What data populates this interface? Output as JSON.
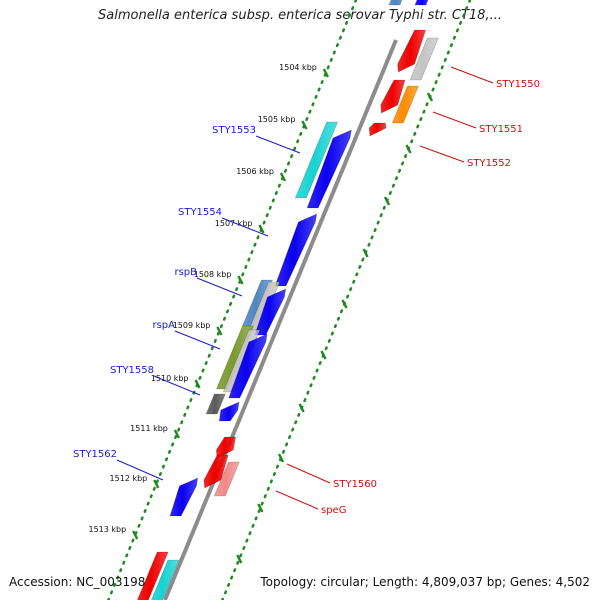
{
  "title": "Salmonella enterica subsp. enterica serovar Typhi str. CT18,...",
  "footer": {
    "accession": "Accession: NC_003198",
    "summary": "Topology: circular; Length: 4,809,037 bp; Genes: 4,502"
  },
  "colors": {
    "backbone": "#8c8c8c",
    "ticks": "#1f8a1f",
    "left_label": "#1a1acc",
    "right_label": "#cc1010",
    "blue": "#0a00f0",
    "red": "#ee0000",
    "cyan": "#18d2d2",
    "orange": "#ff8c00",
    "gray": "#c4c4c4",
    "steelblue": "#4f86c2",
    "olive": "#7a9a2a",
    "darkgray": "#5a5a5a",
    "salmon": "#f08a8a"
  },
  "kbp_labels": [
    "1504 kbp",
    "1505 kbp",
    "1506 kbp",
    "1507 kbp",
    "1508 kbp",
    "1509 kbp",
    "1510 kbp",
    "1511 kbp",
    "1512 kbp",
    "1513 kbp"
  ],
  "left_gene_labels": [
    "STY1553",
    "STY1554",
    "rspB",
    "rspA",
    "STY1558",
    "STY1562"
  ],
  "right_gene_labels": [
    "STY1550",
    "STY1551",
    "STY1552",
    "STY1560",
    "speG"
  ]
}
